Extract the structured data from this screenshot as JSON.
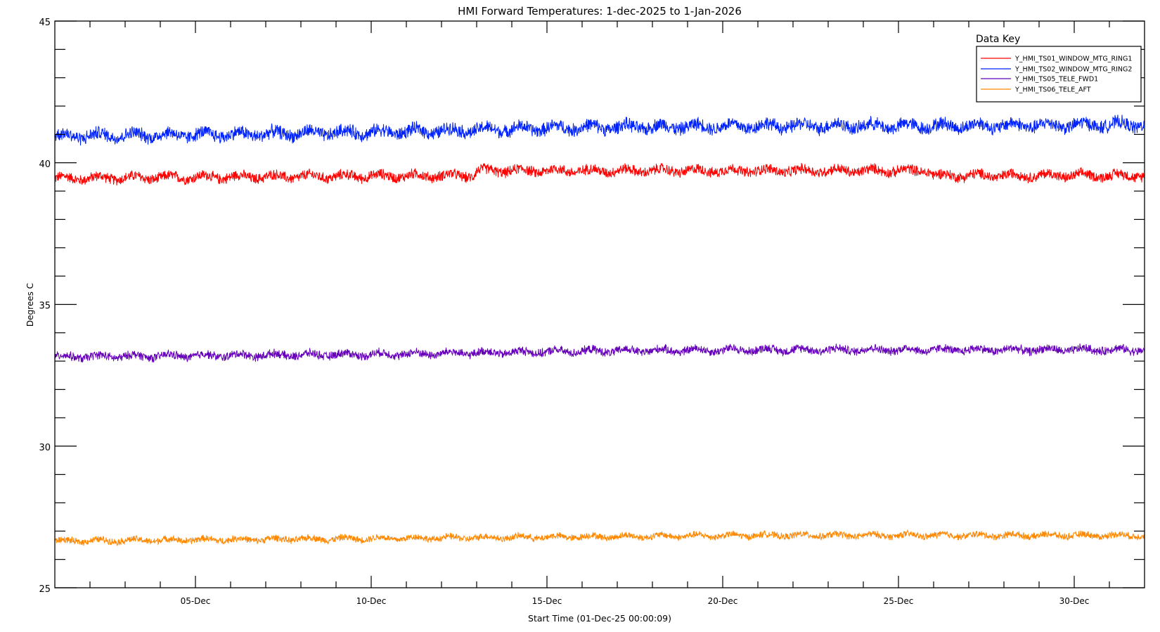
{
  "chart_data": {
    "type": "line",
    "title": "HMI Forward Temperatures: 1-dec-2025 to 1-Jan-2026",
    "xlabel": "Start Time (01-Dec-25 00:00:09)",
    "ylabel": "Degrees C",
    "xlim_days": [
      0,
      31
    ],
    "ylim": [
      25,
      45
    ],
    "yticks": [
      "25",
      "30",
      "35",
      "40",
      "45"
    ],
    "xticks": [
      {
        "day": 4,
        "label": "05-Dec"
      },
      {
        "day": 9,
        "label": "10-Dec"
      },
      {
        "day": 14,
        "label": "15-Dec"
      },
      {
        "day": 19,
        "label": "20-Dec"
      },
      {
        "day": 24,
        "label": "25-Dec"
      },
      {
        "day": 29,
        "label": "30-Dec"
      }
    ],
    "grid": false,
    "legend": {
      "title": "Data Key",
      "placement": "top-right"
    },
    "x_units": "days since 01-Dec-25",
    "series": [
      {
        "name": "Y_HMI_TS01_WINDOW_MTG_RING1",
        "color": "#ff0000",
        "daily_mean_x": [
          0,
          5,
          11.9,
          12,
          24.9,
          25,
          31
        ],
        "daily_mean": [
          39.45,
          39.5,
          39.55,
          39.72,
          39.72,
          39.55,
          39.55
        ],
        "noise": 0.22
      },
      {
        "name": "Y_HMI_TS02_WINDOW_MTG_RING2",
        "color": "#0022ff",
        "daily_mean_x": [
          0,
          5,
          10,
          15,
          20,
          25,
          31
        ],
        "daily_mean": [
          40.95,
          41.0,
          41.1,
          41.25,
          41.3,
          41.3,
          41.35
        ],
        "noise": 0.28
      },
      {
        "name": "Y_HMI_TS05_TELE_FWD1",
        "color": "#6600bb",
        "daily_mean_x": [
          0,
          5,
          10,
          15,
          20,
          25,
          31
        ],
        "daily_mean": [
          33.15,
          33.2,
          33.25,
          33.35,
          33.4,
          33.4,
          33.4
        ],
        "noise": 0.18
      },
      {
        "name": "Y_HMI_TS06_TELE_AFT",
        "color": "#ff8800",
        "daily_mean_x": [
          0,
          5,
          10,
          15,
          20,
          25,
          31
        ],
        "daily_mean": [
          26.65,
          26.7,
          26.75,
          26.8,
          26.85,
          26.85,
          26.85
        ],
        "noise": 0.14
      }
    ]
  }
}
